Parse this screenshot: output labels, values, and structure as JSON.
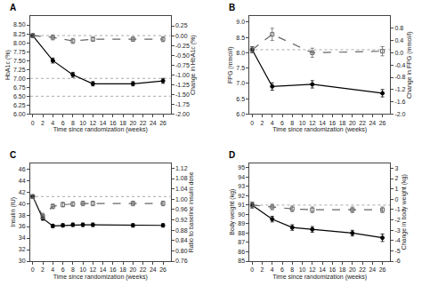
{
  "chart_data": [
    {
      "type": "line",
      "title": "A",
      "x_label": "Time since randomization (weeks)",
      "y_label": "HbA1c (%)",
      "y2_label": "Change in HbA1c (%)",
      "grid": false,
      "series": [
        {
          "color": "#000000",
          "marker": "circle",
          "line_style": "solid",
          "x": [
            0,
            4,
            8,
            12,
            20,
            26
          ],
          "values": [
            8.2,
            7.5,
            7.1,
            6.85,
            6.85,
            6.93
          ],
          "errors": [
            0.05,
            0.07,
            0.07,
            0.06,
            0.06,
            0.07
          ]
        },
        {
          "color": "#666666",
          "marker": "square-open",
          "line_style": "dashed",
          "x": [
            0,
            4,
            8,
            12,
            20,
            26
          ],
          "values": [
            8.2,
            8.15,
            8.05,
            8.1,
            8.1,
            8.1
          ],
          "errors": [
            0.05,
            0.07,
            0.07,
            0.06,
            0.06,
            0.07
          ]
        }
      ],
      "reference_lines": {
        "values": [
          8.2,
          7.0,
          6.5
        ],
        "color": "#aaaaaa"
      },
      "xlim": [
        -0.5,
        27.5
      ],
      "xticks": [
        0,
        2,
        4,
        6,
        8,
        10,
        12,
        14,
        16,
        18,
        20,
        22,
        24,
        26
      ],
      "ylim": [
        6.0,
        8.75
      ],
      "yticks": [
        {
          "value": 6.0,
          "label": "6.00"
        },
        6.25,
        {
          "value": 6.5,
          "label": "6.50"
        },
        6.75,
        {
          "value": 7.0,
          "label": "7.00"
        },
        7.25,
        {
          "value": 7.5,
          "label": "7.50"
        },
        7.75,
        {
          "value": 8.0,
          "label": "8.00"
        },
        8.25,
        {
          "value": 8.5,
          "label": "8.50"
        }
      ],
      "y2lim": [
        -2.0,
        0.5
      ],
      "y2ticks": [
        {
          "value": -2.0,
          "label": "-2.00"
        },
        -1.75,
        {
          "value": -1.5,
          "label": "-1.50"
        },
        -1.25,
        {
          "value": -1.0,
          "label": "-1.00"
        },
        -0.75,
        {
          "value": -0.5,
          "label": "-0.50"
        },
        -0.25,
        {
          "value": 0.0,
          "label": "0.00"
        },
        0.25
      ]
    },
    {
      "type": "line",
      "title": "B",
      "x_label": "Time since randomization (weeks)",
      "y_label": "FPG (mmol/l)",
      "y2_label": "Change in FPG (mmol/l)",
      "grid": false,
      "series": [
        {
          "color": "#000000",
          "marker": "circle",
          "line_style": "solid",
          "x": [
            0,
            4,
            12,
            26
          ],
          "values": [
            8.1,
            6.9,
            6.97,
            6.68
          ],
          "errors": [
            0.1,
            0.12,
            0.12,
            0.12
          ]
        },
        {
          "color": "#666666",
          "marker": "square-open",
          "line_style": "dashed",
          "x": [
            0,
            4,
            12,
            26
          ],
          "values": [
            8.1,
            8.6,
            8.0,
            8.05
          ],
          "errors": [
            0.1,
            0.2,
            0.15,
            0.15
          ]
        }
      ],
      "reference_lines": {
        "values": [
          8.1
        ],
        "color": "#aaaaaa"
      },
      "xlim": [
        -0.5,
        27.5
      ],
      "xticks": [
        0,
        2,
        4,
        6,
        8,
        10,
        12,
        14,
        16,
        18,
        20,
        22,
        24,
        26
      ],
      "ylim": [
        6.0,
        9.2
      ],
      "yticks": [
        {
          "value": 6.0,
          "label": "6.0"
        },
        6.5,
        {
          "value": 7.0,
          "label": "7.0"
        },
        7.5,
        {
          "value": 8.0,
          "label": "8.0"
        },
        8.5,
        {
          "value": 9.0,
          "label": "9.0"
        }
      ],
      "y2lim": [
        -2.0,
        1.2
      ],
      "y2ticks": [
        {
          "value": -2.0,
          "label": "-2.0"
        },
        -1.6,
        -1.2,
        -0.8,
        -0.4,
        {
          "value": 0.0,
          "label": "0.0"
        },
        0.4,
        0.8
      ]
    },
    {
      "type": "line",
      "title": "C",
      "x_label": "Time since randomization (weeks)",
      "y_label": "Insulin (IU)",
      "y2_label": "Ratio to baseline insulin dose",
      "grid": false,
      "series": [
        {
          "color": "#000000",
          "marker": "circle",
          "line_style": "solid",
          "x": [
            0,
            2,
            4,
            6,
            8,
            10,
            12,
            20,
            26
          ],
          "values": [
            41.2,
            37.4,
            36.1,
            36.2,
            36.3,
            36.3,
            36.3,
            36.2,
            36.2
          ],
          "errors": [
            0.3,
            0.3,
            0.3,
            0.3,
            0.3,
            0.3,
            0.3,
            0.3,
            0.3
          ]
        },
        {
          "color": "#666666",
          "marker": "square-open",
          "line_style": "dashed",
          "x": [
            0,
            2,
            4,
            6,
            8,
            10,
            12,
            20,
            26
          ],
          "values": [
            41.2,
            37.8,
            39.5,
            39.8,
            39.9,
            40.0,
            40.0,
            40.0,
            40.0
          ],
          "errors": [
            0.3,
            0.5,
            0.4,
            0.4,
            0.4,
            0.4,
            0.4,
            0.4,
            0.4
          ]
        }
      ],
      "reference_lines": {
        "values": [
          41.2
        ],
        "color": "#aaaaaa"
      },
      "xlim": [
        -0.5,
        27.5
      ],
      "xticks": [
        0,
        2,
        4,
        6,
        8,
        10,
        12,
        14,
        16,
        18,
        20,
        22,
        24,
        26
      ],
      "ylim": [
        30,
        47
      ],
      "yticks": [
        30,
        32,
        34,
        36,
        38,
        40,
        42,
        44,
        46
      ],
      "y2lim": [
        0.76,
        1.14
      ],
      "y2ticks": [
        0.76,
        {
          "value": 0.8,
          "label": "0.80"
        },
        0.84,
        0.88,
        0.92,
        0.96,
        {
          "value": 1.0,
          "label": "1.00"
        },
        1.04,
        1.08,
        1.12
      ]
    },
    {
      "type": "line",
      "title": "D",
      "x_label": "Time since randomization (weeks)",
      "y_label": "Body weight (kg)",
      "y2_label": "Change in body weight (kg)",
      "grid": false,
      "series": [
        {
          "color": "#000000",
          "marker": "circle",
          "line_style": "solid",
          "x": [
            0,
            4,
            8,
            12,
            20,
            26
          ],
          "values": [
            91.0,
            89.5,
            88.6,
            88.4,
            88.0,
            87.5
          ],
          "errors": [
            0.3,
            0.3,
            0.3,
            0.3,
            0.3,
            0.4
          ]
        },
        {
          "color": "#666666",
          "marker": "square-open",
          "line_style": "dashed",
          "x": [
            0,
            4,
            8,
            12,
            20,
            26
          ],
          "values": [
            91.0,
            90.8,
            90.6,
            90.5,
            90.5,
            90.5
          ],
          "errors": [
            0.3,
            0.3,
            0.3,
            0.3,
            0.3,
            0.3
          ]
        }
      ],
      "reference_lines": {
        "values": [
          91.0
        ],
        "color": "#aaaaaa"
      },
      "xlim": [
        -0.5,
        27.5
      ],
      "xticks": [
        0,
        2,
        4,
        6,
        8,
        10,
        12,
        14,
        16,
        18,
        20,
        22,
        24,
        26
      ],
      "ylim": [
        85,
        95.5
      ],
      "yticks": [
        85,
        86,
        87,
        88,
        89,
        90,
        91,
        92,
        93,
        94,
        95
      ],
      "y2lim": [
        -6,
        3.5
      ],
      "y2ticks": [
        -6,
        -5,
        -4,
        -3,
        -2,
        -1,
        0,
        1,
        2,
        3
      ]
    }
  ]
}
